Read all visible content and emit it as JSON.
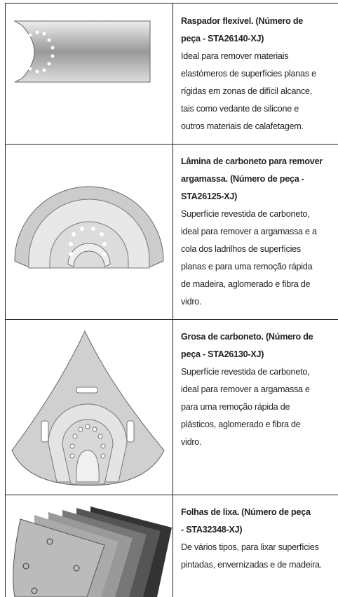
{
  "rows": [
    {
      "title_lines": [
        "Raspador flexível. (Número de",
        "peça - STA26140-XJ)"
      ],
      "body_lines": [
        "Ideal para remover materiais",
        "elastómeros de superfícies planas e",
        "rígidas em zonas de difícil alcance,",
        "tais como vedante de silicone e",
        "outros materiais de calafetagem."
      ]
    },
    {
      "title_lines": [
        "Lâmina de carboneto para remover",
        "argamassa. (Número de peça -",
        "STA26125-XJ)"
      ],
      "body_lines": [
        "Superfície revestida de carboneto,",
        "ideal para remover a argamassa e a",
        "cola dos ladrilhos de superfícies",
        "planas e para uma remoção rápida",
        "de madeira, aglomerado e fibra de",
        "vidro."
      ]
    },
    {
      "title_lines": [
        "Grosa de carboneto. (Número de",
        "peça - STA26130-XJ)"
      ],
      "body_lines": [
        "Superfície revestida de carboneto,",
        "ideal para remover a argamassa e",
        "para uma remoção rápida de",
        "plásticos, aglomerado e fibra de",
        "vidro."
      ]
    },
    {
      "title_lines": [
        "Folhas de lixa.  (Número de peça",
        "- STA32348-XJ)"
      ],
      "body_lines": [
        "De vários tipos, para lixar superfícies",
        "pintadas, envernizadas e de madeira."
      ]
    }
  ]
}
